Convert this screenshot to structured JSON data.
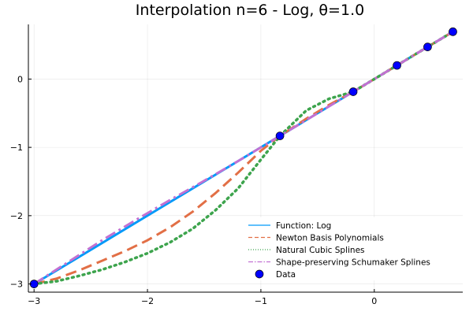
{
  "chart_data": {
    "type": "line",
    "title": "Interpolation n=6 - Log, θ=1.0",
    "xlabel": "",
    "ylabel": "",
    "xlim": [
      -3.05,
      0.78
    ],
    "ylim": [
      -3.12,
      0.8
    ],
    "x_ticks": [
      -3,
      -2,
      -1,
      0
    ],
    "y_ticks": [
      -3,
      -2,
      -1,
      0
    ],
    "grid": true,
    "legend_position": "bottom-right",
    "series": [
      {
        "name": "Function: Log",
        "color": "#009af9",
        "style": "solid",
        "x": [
          -3.0,
          -2.7,
          -2.4,
          -2.1,
          -1.8,
          -1.5,
          -1.2,
          -0.9,
          -0.832,
          -0.6,
          -0.4,
          -0.186,
          0.0,
          0.2,
          0.4,
          0.47,
          0.6,
          0.693
        ],
        "y": [
          -3.0,
          -2.7,
          -2.4,
          -2.1,
          -1.8,
          -1.5,
          -1.2,
          -0.9,
          -0.832,
          -0.6,
          -0.4,
          -0.186,
          0.0,
          0.2,
          0.4,
          0.47,
          0.6,
          0.693
        ]
      },
      {
        "name": "Newton Basis Polynomials",
        "color": "#e26f46",
        "style": "dashed",
        "x": [
          -3.0,
          -2.8,
          -2.6,
          -2.4,
          -2.2,
          -2.0,
          -1.8,
          -1.6,
          -1.4,
          -1.2,
          -1.0,
          -0.832,
          -0.6,
          -0.4,
          -0.186,
          0.0,
          0.2,
          0.47,
          0.693
        ],
        "y": [
          -3.0,
          -2.92,
          -2.8,
          -2.66,
          -2.52,
          -2.36,
          -2.17,
          -1.94,
          -1.67,
          -1.37,
          -1.05,
          -0.832,
          -0.58,
          -0.38,
          -0.186,
          0.0,
          0.2,
          0.47,
          0.693
        ]
      },
      {
        "name": "Natural Cubic Splines",
        "color": "#3da44d",
        "style": "dotted",
        "x": [
          -3.0,
          -2.8,
          -2.6,
          -2.4,
          -2.2,
          -2.0,
          -1.8,
          -1.6,
          -1.4,
          -1.2,
          -1.0,
          -0.832,
          -0.6,
          -0.4,
          -0.186,
          0.0,
          0.2,
          0.47,
          0.693
        ],
        "y": [
          -3.0,
          -2.96,
          -2.88,
          -2.79,
          -2.68,
          -2.55,
          -2.39,
          -2.19,
          -1.92,
          -1.6,
          -1.18,
          -0.832,
          -0.46,
          -0.29,
          -0.186,
          0.0,
          0.2,
          0.47,
          0.693
        ]
      },
      {
        "name": "Shape-preserving Schumaker Splines",
        "color": "#c271d2",
        "style": "dashdot",
        "x": [
          -3.0,
          -2.7,
          -2.4,
          -2.1,
          -1.8,
          -1.5,
          -1.2,
          -0.832,
          -0.5,
          -0.186,
          0.0,
          0.2,
          0.47,
          0.693
        ],
        "y": [
          -3.0,
          -2.68,
          -2.36,
          -2.06,
          -1.77,
          -1.49,
          -1.2,
          -0.832,
          -0.5,
          -0.186,
          0.0,
          0.2,
          0.47,
          0.693
        ]
      },
      {
        "name": "Data",
        "color": "#0000ff",
        "style": "markers",
        "x": [
          -3.0,
          -0.832,
          -0.186,
          0.2,
          0.47,
          0.693
        ],
        "y": [
          -3.0,
          -0.832,
          -0.186,
          0.2,
          0.47,
          0.693
        ]
      }
    ]
  }
}
